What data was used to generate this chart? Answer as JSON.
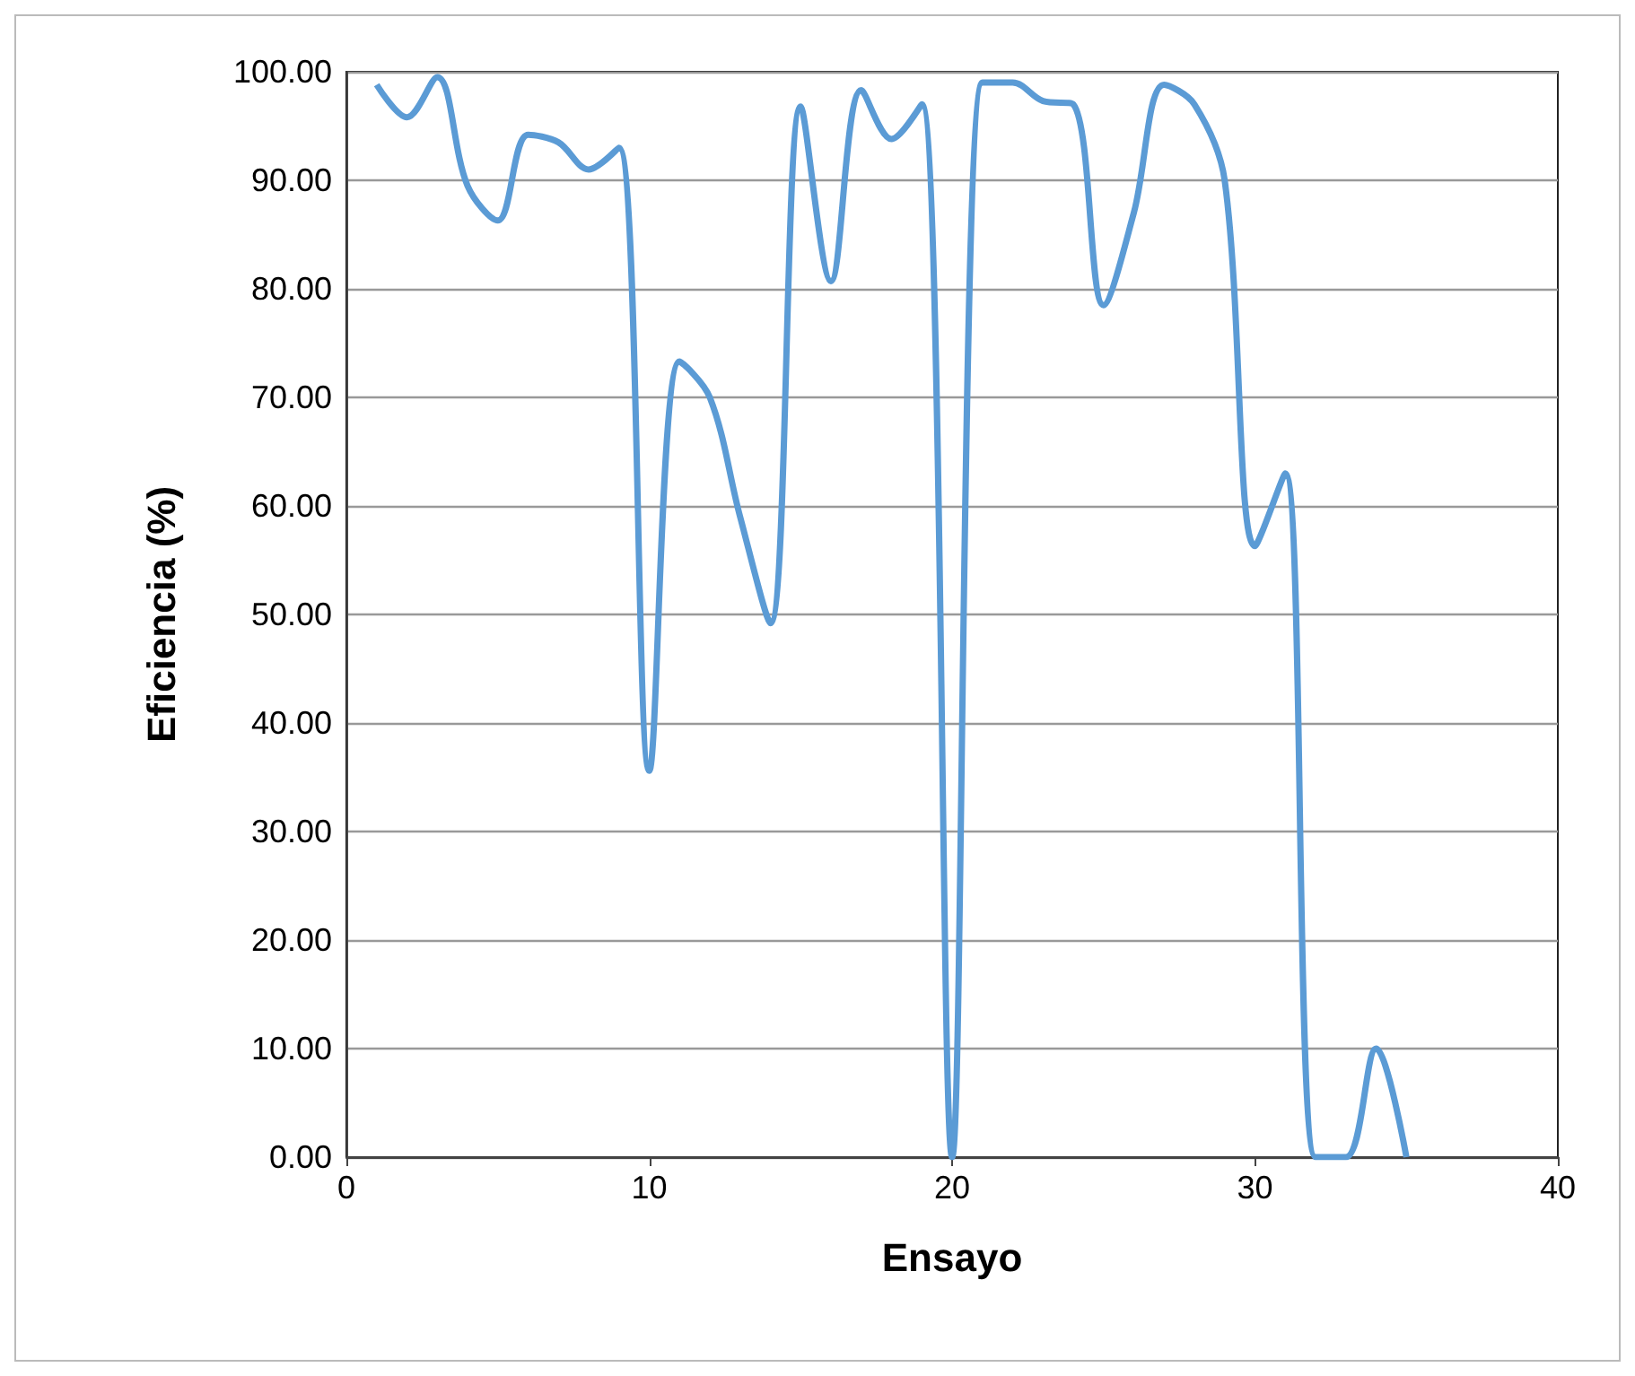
{
  "chart_data": {
    "type": "line",
    "xlabel": "Ensayo",
    "ylabel": "Eficiencia (%)",
    "x": [
      1,
      2,
      3,
      4,
      5,
      6,
      7,
      8,
      9,
      10,
      11,
      12,
      13,
      14,
      15,
      16,
      17,
      18,
      19,
      20,
      21,
      22,
      23,
      24,
      25,
      26,
      27,
      28,
      29,
      30,
      31,
      32,
      33,
      34,
      35
    ],
    "series": [
      {
        "color": "#5b9bd5",
        "values": [
          98.8,
          95.8,
          99.5,
          89.5,
          86.3,
          94.2,
          93.5,
          91,
          93,
          35.6,
          73.3,
          70,
          59,
          49.2,
          96.8,
          80.7,
          98.3,
          93.8,
          97,
          0,
          99,
          99,
          97.3,
          97,
          78.5,
          87,
          98.8,
          97,
          90,
          56.3,
          63,
          0,
          0,
          10,
          0
        ]
      }
    ],
    "xlim": [
      0,
      40
    ],
    "xticks": [
      0,
      10,
      20,
      30,
      40
    ],
    "ylim": [
      0,
      100
    ],
    "yticks": [
      {
        "value": 0,
        "label": "0.00"
      },
      {
        "value": 10,
        "label": "10.00"
      },
      {
        "value": 20,
        "label": "20.00"
      },
      {
        "value": 30,
        "label": "30.00"
      },
      {
        "value": 40,
        "label": "40.00"
      },
      {
        "value": 50,
        "label": "50.00"
      },
      {
        "value": 60,
        "label": "60.00"
      },
      {
        "value": 70,
        "label": "70.00"
      },
      {
        "value": 80,
        "label": "80.00"
      },
      {
        "value": 90,
        "label": "90.00"
      },
      {
        "value": 100,
        "label": "100.00"
      }
    ],
    "grid": "y",
    "marker": "none",
    "line_style": "solid"
  }
}
